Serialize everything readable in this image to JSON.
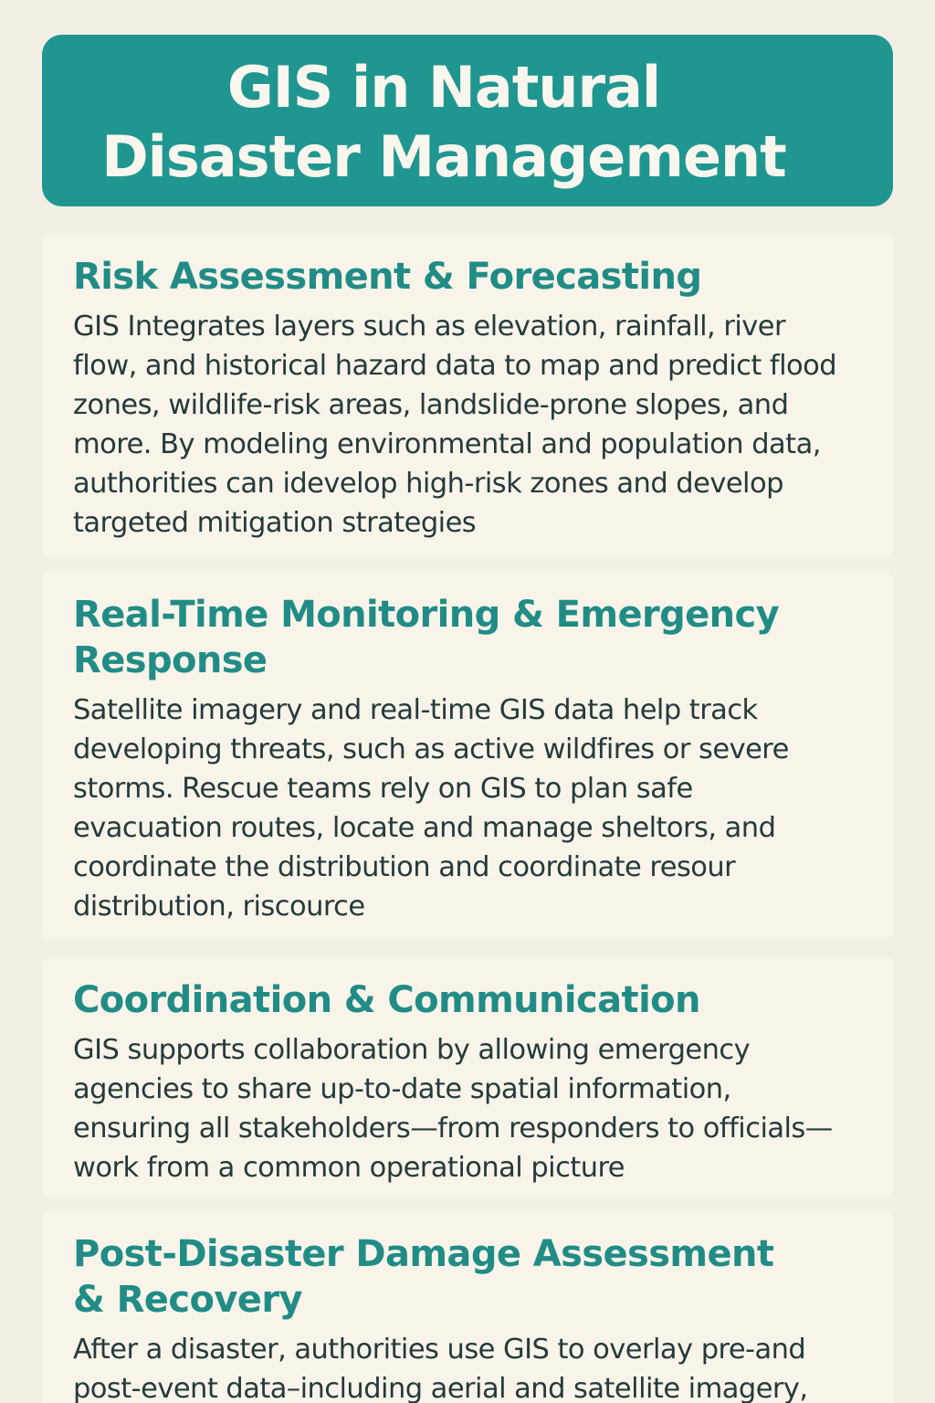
{
  "title": "GIS in Natural\nDisaster Management",
  "sections": [
    {
      "heading": "Risk Assessment & Forecasting",
      "body": "GIS Integrates layers such as elevation, rainfall, river\nflow, and historical hazard data to map and predict flood\nzones, wildlife-risk areas, landslide-prone slopes, and\nmore. By modeling environmental and population data,\nauthorities can idevelop high-risk zones and develop\ntargeted mitigation strategies"
    },
    {
      "heading": "Real-Time Monitoring & Emergency\nResponse",
      "body": "Satellite imagery and real-time GIS data help track\ndeveloping threats, such as active wildfires or severe\nstorms. Rescue teams rely on GIS to plan safe\nevacuation routes, locate and manage sheltors, and\ncoordinate the distribution and coordinate resour\ndistribution, riscource"
    },
    {
      "heading": "Coordination & Communication",
      "body": "GIS supports collaboration by allowing emergency\nagencies to share up-to-date spatial information,\nensuring all stakeholders—from responders to officials—\nwork from a common operational picture"
    },
    {
      "heading": "Post-Disaster Damage Assessment\n& Recovery",
      "body": "After a disaster, authorities use GIS to overlay pre-and\npost-event data–including aerial and satellite imagery,"
    }
  ],
  "colors": {
    "background": "#f3efe4",
    "banner": "#209690",
    "heading": "#218c85",
    "body_text": "#253a3a"
  }
}
